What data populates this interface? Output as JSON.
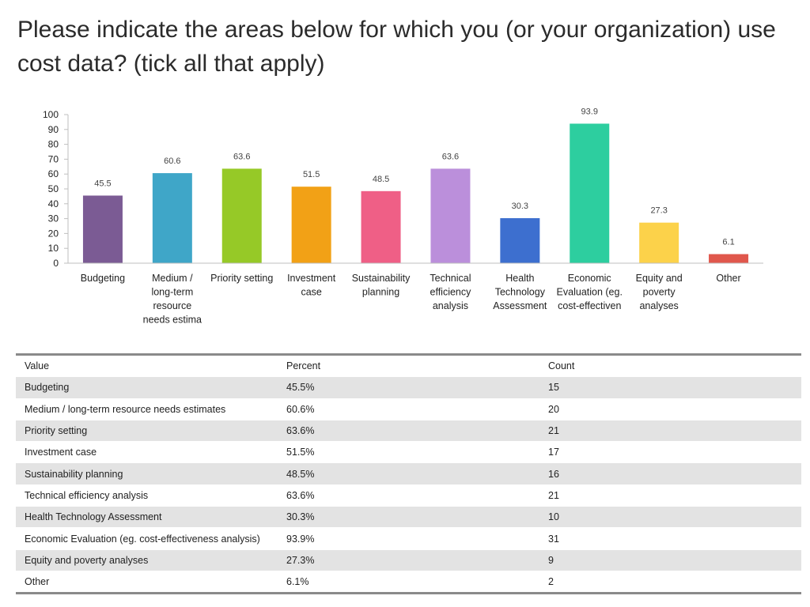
{
  "title": "Please indicate the areas below for which you (or your organization) use cost data? (tick all that apply)",
  "chart_data": {
    "type": "bar",
    "categories": [
      [
        "Budgeting"
      ],
      [
        "Medium /",
        "long-term",
        "resource",
        "needs estima"
      ],
      [
        "Priority setting"
      ],
      [
        "Investment",
        "case"
      ],
      [
        "Sustainability",
        "planning"
      ],
      [
        "Technical",
        "efficiency",
        "analysis"
      ],
      [
        "Health",
        "Technology",
        "Assessment"
      ],
      [
        "Economic",
        "Evaluation (eg.",
        "cost-effectiven"
      ],
      [
        "Equity and",
        "poverty",
        "analyses"
      ],
      [
        "Other"
      ]
    ],
    "values": [
      45.5,
      60.6,
      63.6,
      51.5,
      48.5,
      63.6,
      30.3,
      93.9,
      27.3,
      6.1
    ],
    "data_labels": [
      "45.5",
      "60.6",
      "63.6",
      "51.5",
      "48.5",
      "63.6",
      "30.3",
      "93.9",
      "27.3",
      "6.1"
    ],
    "colors": [
      "#7b5b94",
      "#3fa6c8",
      "#96c927",
      "#f2a116",
      "#ef5f86",
      "#bb8fdb",
      "#3d6fcf",
      "#2dce9f",
      "#fcd24a",
      "#e0574c"
    ],
    "yticks": [
      "0",
      "10",
      "20",
      "30",
      "40",
      "50",
      "60",
      "70",
      "80",
      "90",
      "100"
    ],
    "ylim": [
      0,
      100
    ],
    "grid": false,
    "legend": "none"
  },
  "table": {
    "headers": [
      "Value",
      "Percent",
      "Count"
    ],
    "rows": [
      [
        "Budgeting",
        "45.5%",
        "15"
      ],
      [
        "Medium / long-term resource needs estimates",
        "60.6%",
        "20"
      ],
      [
        "Priority setting",
        "63.6%",
        "21"
      ],
      [
        "Investment case",
        "51.5%",
        "17"
      ],
      [
        "Sustainability planning",
        "48.5%",
        "16"
      ],
      [
        "Technical efficiency analysis",
        "63.6%",
        "21"
      ],
      [
        "Health Technology Assessment",
        "30.3%",
        "10"
      ],
      [
        "Economic Evaluation (eg. cost-effectiveness analysis)",
        "93.9%",
        "31"
      ],
      [
        "Equity and poverty analyses",
        "27.3%",
        "9"
      ],
      [
        "Other",
        "6.1%",
        "2"
      ]
    ]
  }
}
